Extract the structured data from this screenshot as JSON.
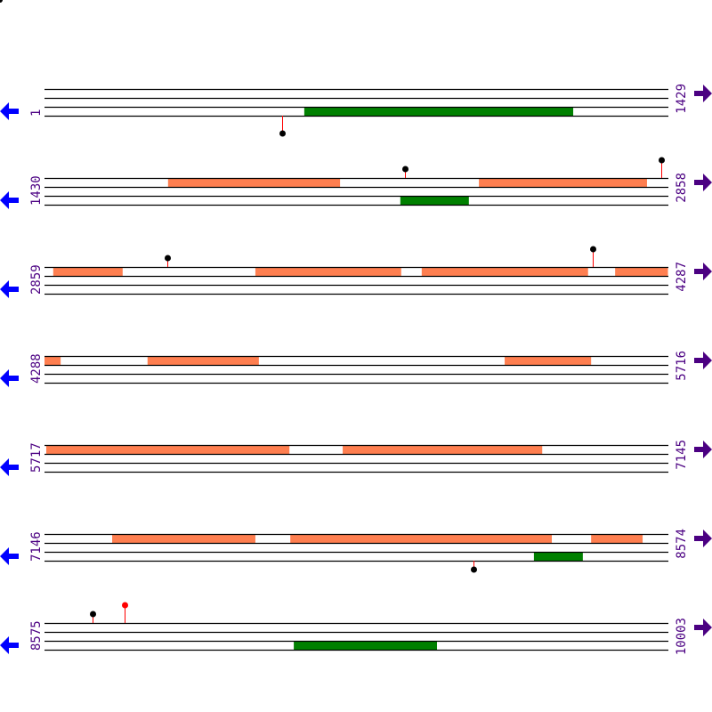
{
  "colors": {
    "cds": "#FF7F50",
    "gene": "#008000",
    "line": "#000000",
    "label": "#4B0082",
    "arrow_left": "#0000FF",
    "arrow_right": "#4B0082",
    "stem": "#FF0000",
    "head_default": "#000000",
    "head_highlight": "#FF0000"
  },
  "icons": {
    "left": "arrow-left-icon",
    "right": "arrow-right-icon"
  },
  "bp_per_row": 1429,
  "rows": [
    {
      "start": "1",
      "end": "1429",
      "s": 1,
      "features": [
        {
          "lane": 2,
          "type": "gene",
          "from": 596,
          "to": 1212
        }
      ],
      "markers": [
        {
          "pos": 545,
          "lane": 2,
          "level": 2,
          "head": "default"
        }
      ]
    },
    {
      "start": "1430",
      "end": "2858",
      "s": 1430,
      "features": [
        {
          "lane": 0,
          "type": "cds",
          "from": 1713,
          "to": 2107
        },
        {
          "lane": 0,
          "type": "cds",
          "from": 2425,
          "to": 2810
        },
        {
          "lane": 2,
          "type": "gene",
          "from": 2245,
          "to": 2402
        }
      ],
      "markers": [
        {
          "pos": 2256,
          "lane": 0,
          "level": 1,
          "head": "default"
        },
        {
          "pos": 2843,
          "lane": 0,
          "level": 2,
          "head": "default"
        }
      ]
    },
    {
      "start": "2859",
      "end": "4287",
      "s": 2859,
      "features": [
        {
          "lane": 0,
          "type": "cds",
          "from": 2879,
          "to": 3038
        },
        {
          "lane": 0,
          "type": "cds",
          "from": 3342,
          "to": 3676
        },
        {
          "lane": 0,
          "type": "cds",
          "from": 3723,
          "to": 4104
        },
        {
          "lane": 0,
          "type": "cds",
          "from": 4166,
          "to": 4287
        }
      ],
      "markers": [
        {
          "pos": 3140,
          "lane": 0,
          "level": 1,
          "head": "default"
        },
        {
          "pos": 4114,
          "lane": 0,
          "level": 2,
          "head": "default"
        }
      ]
    },
    {
      "start": "4288",
      "end": "5716",
      "s": 4288,
      "features": [
        {
          "lane": 0,
          "type": "cds",
          "from": 4288,
          "to": 4325
        },
        {
          "lane": 0,
          "type": "cds",
          "from": 4524,
          "to": 4779
        },
        {
          "lane": 0,
          "type": "cds",
          "from": 5342,
          "to": 5540
        }
      ],
      "markers": []
    },
    {
      "start": "5717",
      "end": "7145",
      "s": 5717,
      "features": [
        {
          "lane": 0,
          "type": "cds",
          "from": 5721,
          "to": 6278
        },
        {
          "lane": 0,
          "type": "cds",
          "from": 6400,
          "to": 6857
        }
      ],
      "markers": []
    },
    {
      "start": "7146",
      "end": "8574",
      "s": 7146,
      "features": [
        {
          "lane": 0,
          "type": "cds",
          "from": 7301,
          "to": 7629
        },
        {
          "lane": 0,
          "type": "cds",
          "from": 7709,
          "to": 8308
        },
        {
          "lane": 0,
          "type": "cds",
          "from": 8398,
          "to": 8516
        },
        {
          "lane": 2,
          "type": "gene",
          "from": 8267,
          "to": 8379
        }
      ],
      "markers": [
        {
          "pos": 8129,
          "lane": 2,
          "level": 1,
          "head": "default"
        }
      ]
    },
    {
      "start": "8575",
      "end": "10003",
      "s": 8575,
      "features": [
        {
          "lane": 2,
          "type": "gene",
          "from": 9146,
          "to": 9474
        }
      ],
      "markers": [
        {
          "pos": 8685,
          "lane": 0,
          "level": 1,
          "head": "default"
        },
        {
          "pos": 8758,
          "lane": 0,
          "level": 2,
          "head": "highlight"
        }
      ]
    }
  ]
}
